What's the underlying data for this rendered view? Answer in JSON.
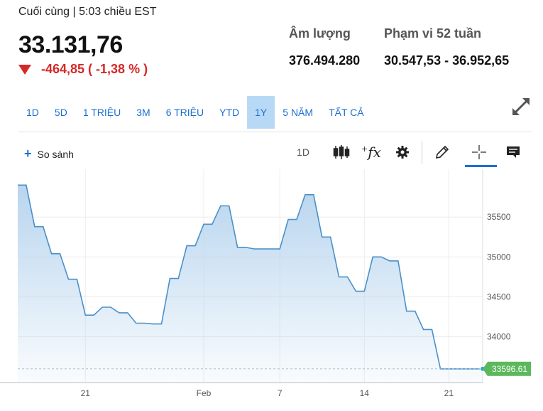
{
  "header": {
    "last_label": "Cuối cùng | 5:03 chiều EST",
    "price": "33.131,76",
    "change": "-464,85 ( -1,38 % )",
    "change_color": "#d62828"
  },
  "stats": {
    "volume_label": "Âm lượng",
    "volume_value": "376.494.280",
    "range_label": "Phạm vi 52 tuần",
    "range_value": "30.547,53 - 36.952,65"
  },
  "tabs": [
    {
      "label": "1D",
      "active": false
    },
    {
      "label": "5D",
      "active": false
    },
    {
      "label": "1 TRIỆU",
      "active": false
    },
    {
      "label": "3M",
      "active": false
    },
    {
      "label": "6 TRIỆU",
      "active": false
    },
    {
      "label": "YTD",
      "active": false
    },
    {
      "label": "1Y",
      "active": true
    },
    {
      "label": "5 NĂM",
      "active": false
    },
    {
      "label": "TẤT CẢ",
      "active": false
    }
  ],
  "toolbar": {
    "compare_label": "So sánh",
    "interval_label": "1D",
    "icons": [
      "candlestick-icon",
      "function-icon",
      "gear-icon",
      "pencil-icon",
      "crosshair-icon",
      "comment-icon"
    ]
  },
  "accent_color": "#1d6fd1",
  "chart_data": {
    "type": "area",
    "x": [
      0,
      1,
      2,
      3,
      4,
      5,
      6,
      7,
      8,
      9,
      10,
      11,
      12,
      13,
      14,
      15,
      16,
      17,
      18,
      19,
      20,
      21,
      22,
      23,
      24,
      25,
      26,
      27,
      28,
      29,
      30,
      31,
      32,
      33,
      34,
      35,
      36,
      37,
      38,
      39,
      40,
      41,
      42,
      43,
      44,
      45,
      46,
      47,
      48,
      49,
      50,
      51,
      52,
      53,
      54,
      55
    ],
    "values": [
      35900,
      35900,
      35380,
      35380,
      35040,
      35040,
      34720,
      34720,
      34270,
      34270,
      34370,
      34370,
      34300,
      34300,
      34170,
      34170,
      34160,
      34160,
      34730,
      34730,
      35140,
      35140,
      35410,
      35410,
      35640,
      35640,
      35120,
      35120,
      35100,
      35100,
      35100,
      35100,
      35470,
      35470,
      35780,
      35780,
      35250,
      35250,
      34750,
      34750,
      34570,
      34570,
      35000,
      35000,
      34950,
      34950,
      34320,
      34320,
      34090,
      34090,
      33597,
      33597,
      33597,
      33597,
      33597,
      33597
    ],
    "x_tick_labels": [
      {
        "at": 8,
        "label": "21"
      },
      {
        "at": 22,
        "label": "Feb"
      },
      {
        "at": 31,
        "label": "7"
      },
      {
        "at": 41,
        "label": "14"
      },
      {
        "at": 51,
        "label": "21"
      }
    ],
    "y_ticks": [
      34000,
      34500,
      35000,
      35500
    ],
    "ylim": [
      33470,
      36010
    ],
    "last_value_label": "33596.61",
    "line_color": "#4a90c9",
    "fill_color": "#b8d5ee",
    "grid": true
  }
}
